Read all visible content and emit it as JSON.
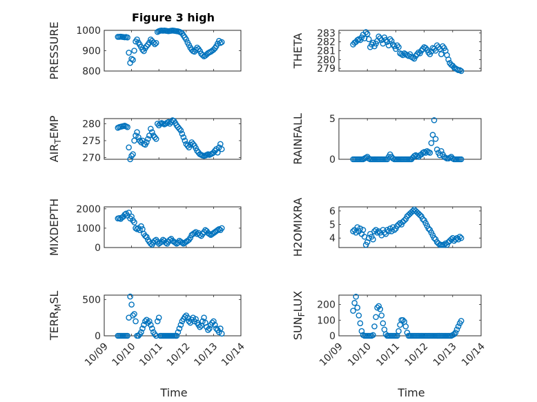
{
  "figure": {
    "title": "Figure 3 high",
    "time_label": "Time",
    "line_color": "#0072bd",
    "x_tick_labels": [
      "10/09",
      "10/10",
      "10/11",
      "10/12",
      "10/13",
      "10/14"
    ]
  },
  "chart_data": [
    {
      "type": "scatter",
      "ylabel": "PRESSURE",
      "xlabel": "",
      "xlim": [
        9,
        14
      ],
      "ylim": [
        800,
        1000
      ],
      "y_ticks": [
        800,
        900,
        1000
      ],
      "x": [
        9.5,
        9.55,
        9.6,
        9.65,
        9.7,
        9.75,
        9.8,
        9.85,
        9.9,
        9.95,
        10.0,
        10.05,
        10.1,
        10.15,
        10.2,
        10.25,
        10.3,
        10.35,
        10.4,
        10.45,
        10.5,
        10.55,
        10.6,
        10.65,
        10.7,
        10.75,
        10.8,
        10.85,
        10.9,
        10.95,
        11.0,
        11.05,
        11.1,
        11.15,
        11.2,
        11.25,
        11.3,
        11.35,
        11.4,
        11.45,
        11.5,
        11.55,
        11.6,
        11.65,
        11.7,
        11.75,
        11.8,
        11.85,
        11.9,
        11.95,
        12.0,
        12.05,
        12.1,
        12.15,
        12.2,
        12.25,
        12.3,
        12.35,
        12.4,
        12.45,
        12.5,
        12.55,
        12.6,
        12.65,
        12.7,
        12.75,
        12.8,
        12.85,
        12.9,
        12.95,
        13.0,
        13.05,
        13.1,
        13.15,
        13.2,
        13.25,
        13.3
      ],
      "y": [
        968,
        968,
        969,
        968,
        967,
        966,
        967,
        965,
        890,
        840,
        860,
        855,
        900,
        945,
        955,
        940,
        930,
        918,
        905,
        898,
        912,
        922,
        930,
        940,
        955,
        948,
        940,
        932,
        938,
        992,
        996,
        998,
        999,
        998,
        999,
        998,
        997,
        996,
        997,
        998,
        999,
        998,
        997,
        996,
        995,
        993,
        990,
        985,
        975,
        965,
        955,
        940,
        928,
        915,
        905,
        898,
        895,
        905,
        915,
        908,
        898,
        885,
        878,
        872,
        876,
        882,
        888,
        892,
        895,
        900,
        905,
        912,
        922,
        935,
        948,
        938,
        942
      ]
    },
    {
      "type": "scatter",
      "ylabel": "THETA",
      "xlabel": "",
      "xlim": [
        9,
        14
      ],
      "ylim": [
        278.7,
        283.3
      ],
      "y_ticks": [
        279,
        280,
        281,
        282,
        283
      ],
      "x": [
        9.5,
        9.55,
        9.6,
        9.65,
        9.7,
        9.75,
        9.8,
        9.85,
        9.9,
        9.95,
        10.0,
        10.05,
        10.1,
        10.15,
        10.2,
        10.25,
        10.3,
        10.35,
        10.4,
        10.45,
        10.5,
        10.55,
        10.6,
        10.65,
        10.7,
        10.75,
        10.8,
        10.85,
        10.9,
        10.95,
        11.0,
        11.05,
        11.1,
        11.15,
        11.2,
        11.25,
        11.3,
        11.35,
        11.4,
        11.45,
        11.5,
        11.55,
        11.6,
        11.65,
        11.7,
        11.75,
        11.8,
        11.85,
        11.9,
        11.95,
        12.0,
        12.05,
        12.1,
        12.15,
        12.2,
        12.25,
        12.3,
        12.35,
        12.4,
        12.45,
        12.5,
        12.55,
        12.6,
        12.65,
        12.7,
        12.75,
        12.8,
        12.85,
        12.9,
        12.95,
        13.0,
        13.05,
        13.1,
        13.15,
        13.2,
        13.25,
        13.3
      ],
      "y": [
        281.7,
        281.9,
        282.0,
        282.2,
        282.3,
        282.2,
        282.5,
        282.8,
        282.4,
        283.1,
        282.9,
        282.3,
        281.4,
        281.7,
        281.9,
        281.5,
        281.8,
        282.1,
        282.6,
        282.4,
        282.2,
        281.8,
        282.5,
        282.2,
        282.0,
        281.6,
        282.3,
        282.1,
        281.7,
        281.5,
        281.2,
        281.6,
        281.4,
        280.7,
        280.6,
        280.5,
        280.7,
        280.6,
        280.5,
        280.4,
        280.6,
        280.3,
        280.2,
        280.1,
        280.4,
        280.6,
        280.8,
        280.7,
        281.0,
        281.2,
        281.4,
        281.3,
        281.1,
        280.8,
        280.6,
        280.9,
        281.3,
        281.2,
        281.0,
        281.6,
        281.4,
        281.2,
        280.6,
        281.5,
        281.3,
        281.0,
        280.5,
        280.0,
        279.6,
        279.4,
        279.3,
        279.1,
        279.0,
        278.9,
        278.8,
        278.8,
        278.7
      ]
    },
    {
      "type": "scatter",
      "ylabel": "AIR_TEMP",
      "xlabel": "",
      "xlim": [
        9,
        14
      ],
      "ylim": [
        269.5,
        281.5
      ],
      "y_ticks": [
        270,
        275,
        280
      ],
      "x": [
        9.5,
        9.55,
        9.6,
        9.65,
        9.7,
        9.75,
        9.8,
        9.85,
        9.9,
        9.95,
        10.0,
        10.05,
        10.1,
        10.15,
        10.2,
        10.25,
        10.3,
        10.35,
        10.4,
        10.45,
        10.5,
        10.55,
        10.6,
        10.65,
        10.7,
        10.75,
        10.8,
        10.85,
        10.9,
        10.95,
        11.0,
        11.05,
        11.1,
        11.15,
        11.2,
        11.25,
        11.3,
        11.35,
        11.4,
        11.45,
        11.5,
        11.55,
        11.6,
        11.65,
        11.7,
        11.75,
        11.8,
        11.85,
        11.9,
        11.95,
        12.0,
        12.05,
        12.1,
        12.15,
        12.2,
        12.25,
        12.3,
        12.35,
        12.4,
        12.45,
        12.5,
        12.55,
        12.6,
        12.65,
        12.7,
        12.75,
        12.8,
        12.85,
        12.9,
        12.95,
        13.0,
        13.05,
        13.1,
        13.15,
        13.2,
        13.25,
        13.3
      ],
      "y": [
        278.8,
        279.0,
        279.1,
        279.2,
        279.3,
        279.4,
        279.2,
        279.0,
        273.0,
        269.5,
        270.5,
        271.0,
        275.0,
        276.5,
        277.5,
        276.0,
        275.0,
        274.5,
        275.0,
        274.0,
        273.8,
        274.5,
        275.5,
        276.5,
        278.5,
        277.5,
        276.5,
        276.0,
        275.5,
        280.0,
        279.5,
        280.0,
        280.2,
        280.0,
        279.8,
        280.0,
        280.3,
        280.5,
        280.0,
        280.5,
        281.0,
        280.8,
        280.2,
        279.5,
        279.0,
        278.5,
        278.0,
        277.0,
        276.0,
        275.0,
        274.0,
        273.5,
        273.0,
        273.8,
        274.5,
        274.0,
        273.5,
        272.8,
        272.0,
        271.5,
        271.0,
        270.8,
        270.6,
        270.5,
        270.6,
        270.8,
        271.0,
        270.8,
        271.0,
        271.2,
        271.5,
        272.0,
        272.5,
        271.5,
        273.0,
        274.0,
        272.5
      ]
    },
    {
      "type": "scatter",
      "ylabel": "RAINFALL",
      "xlabel": "",
      "xlim": [
        9,
        14
      ],
      "ylim": [
        0,
        5
      ],
      "y_ticks": [
        0,
        5
      ],
      "x": [
        9.5,
        9.55,
        9.6,
        9.65,
        9.7,
        9.75,
        9.8,
        9.85,
        9.9,
        9.95,
        10.0,
        10.05,
        10.1,
        10.15,
        10.2,
        10.25,
        10.3,
        10.35,
        10.4,
        10.45,
        10.5,
        10.55,
        10.6,
        10.65,
        10.7,
        10.75,
        10.8,
        10.85,
        10.9,
        10.95,
        11.0,
        11.05,
        11.1,
        11.15,
        11.2,
        11.25,
        11.3,
        11.35,
        11.4,
        11.45,
        11.5,
        11.55,
        11.6,
        11.65,
        11.7,
        11.75,
        11.8,
        11.85,
        11.9,
        11.95,
        12.0,
        12.05,
        12.1,
        12.15,
        12.2,
        12.25,
        12.3,
        12.35,
        12.4,
        12.45,
        12.5,
        12.55,
        12.6,
        12.65,
        12.7,
        12.75,
        12.8,
        12.85,
        12.9,
        12.95,
        13.0,
        13.05,
        13.1,
        13.15,
        13.2,
        13.25,
        13.3
      ],
      "y": [
        0,
        0,
        0,
        0,
        0,
        0,
        0,
        0,
        0.1,
        0.2,
        0.3,
        0.1,
        0,
        0,
        0,
        0,
        0,
        0,
        0,
        0,
        0,
        0,
        0,
        0,
        0,
        0.3,
        0.6,
        0.3,
        0.1,
        0,
        0,
        0,
        0,
        0,
        0,
        0,
        0,
        0,
        0,
        0,
        0,
        0,
        0.2,
        0.4,
        0.5,
        0.4,
        0.3,
        0.5,
        0.6,
        0.8,
        0.9,
        0.8,
        1.0,
        0.9,
        0.8,
        2.0,
        3.0,
        4.8,
        2.5,
        1.2,
        0.8,
        0.5,
        1.0,
        0.6,
        0.3,
        0.2,
        0.1,
        0.1,
        0.2,
        0.3,
        0.1,
        0,
        0,
        0,
        0,
        0,
        0
      ]
    },
    {
      "type": "scatter",
      "ylabel": "MIXDEPTH",
      "xlabel": "",
      "xlim": [
        9,
        14
      ],
      "ylim": [
        0,
        2100
      ],
      "y_ticks": [
        0,
        1000,
        2000
      ],
      "x": [
        9.5,
        9.55,
        9.6,
        9.65,
        9.7,
        9.75,
        9.8,
        9.85,
        9.9,
        9.95,
        10.0,
        10.05,
        10.1,
        10.15,
        10.2,
        10.25,
        10.3,
        10.35,
        10.4,
        10.45,
        10.5,
        10.55,
        10.6,
        10.65,
        10.7,
        10.75,
        10.8,
        10.85,
        10.9,
        10.95,
        11.0,
        11.05,
        11.1,
        11.15,
        11.2,
        11.25,
        11.3,
        11.35,
        11.4,
        11.45,
        11.5,
        11.55,
        11.6,
        11.65,
        11.7,
        11.75,
        11.8,
        11.85,
        11.9,
        11.95,
        12.0,
        12.05,
        12.1,
        12.15,
        12.2,
        12.25,
        12.3,
        12.35,
        12.4,
        12.45,
        12.5,
        12.55,
        12.6,
        12.65,
        12.7,
        12.75,
        12.8,
        12.85,
        12.9,
        12.95,
        13.0,
        13.05,
        13.1,
        13.15,
        13.2,
        13.25,
        13.3
      ],
      "y": [
        1500,
        1520,
        1480,
        1550,
        1600,
        1700,
        1750,
        1650,
        1800,
        1500,
        1600,
        1400,
        1300,
        1000,
        950,
        1000,
        900,
        1100,
        950,
        700,
        600,
        550,
        400,
        300,
        200,
        150,
        250,
        350,
        400,
        300,
        200,
        250,
        300,
        400,
        350,
        250,
        200,
        300,
        400,
        450,
        350,
        300,
        250,
        200,
        250,
        350,
        300,
        250,
        200,
        250,
        300,
        350,
        400,
        500,
        650,
        700,
        750,
        800,
        700,
        750,
        650,
        600,
        700,
        800,
        900,
        850,
        750,
        700,
        650,
        700,
        750,
        800,
        850,
        900,
        950,
        900,
        1000
      ]
    },
    {
      "type": "scatter",
      "ylabel": "H2OMIXRA",
      "xlabel": "",
      "xlim": [
        9,
        14
      ],
      "ylim": [
        3.3,
        6.3
      ],
      "y_ticks": [
        4,
        5,
        6
      ],
      "x": [
        9.5,
        9.55,
        9.6,
        9.65,
        9.7,
        9.75,
        9.8,
        9.85,
        9.9,
        9.95,
        10.0,
        10.05,
        10.1,
        10.15,
        10.2,
        10.25,
        10.3,
        10.35,
        10.4,
        10.45,
        10.5,
        10.55,
        10.6,
        10.65,
        10.7,
        10.75,
        10.8,
        10.85,
        10.9,
        10.95,
        11.0,
        11.05,
        11.1,
        11.15,
        11.2,
        11.25,
        11.3,
        11.35,
        11.4,
        11.45,
        11.5,
        11.55,
        11.6,
        11.65,
        11.7,
        11.75,
        11.8,
        11.85,
        11.9,
        11.95,
        12.0,
        12.05,
        12.1,
        12.15,
        12.2,
        12.25,
        12.3,
        12.35,
        12.4,
        12.45,
        12.5,
        12.55,
        12.6,
        12.65,
        12.7,
        12.75,
        12.8,
        12.85,
        12.9,
        12.95,
        13.0,
        13.05,
        13.1,
        13.15,
        13.2,
        13.25,
        13.3
      ],
      "y": [
        4.5,
        4.6,
        4.4,
        4.8,
        4.5,
        4.7,
        4.3,
        4.6,
        4.1,
        3.5,
        3.7,
        4.0,
        4.3,
        4.1,
        3.9,
        4.5,
        4.6,
        4.4,
        4.5,
        4.4,
        4.2,
        4.6,
        4.4,
        4.3,
        4.6,
        4.5,
        4.7,
        4.5,
        4.8,
        4.6,
        4.7,
        4.9,
        5.0,
        5.1,
        5.0,
        5.2,
        5.3,
        5.4,
        5.6,
        5.7,
        5.8,
        5.9,
        6.0,
        6.1,
        6.0,
        5.9,
        5.8,
        5.7,
        5.6,
        5.4,
        5.3,
        5.1,
        4.9,
        4.7,
        4.6,
        4.4,
        4.2,
        4.0,
        3.9,
        3.7,
        3.6,
        3.5,
        3.5,
        3.5,
        3.5,
        3.6,
        3.5,
        3.7,
        3.8,
        3.9,
        4.0,
        3.8,
        3.9,
        4.0,
        3.9,
        4.1,
        4.0
      ]
    },
    {
      "type": "scatter",
      "ylabel": "TERR_MSL",
      "xlabel": "Time",
      "xlim": [
        9,
        14
      ],
      "ylim": [
        0,
        560
      ],
      "y_ticks": [
        0,
        500
      ],
      "x": [
        9.5,
        9.55,
        9.6,
        9.65,
        9.7,
        9.75,
        9.8,
        9.85,
        9.9,
        9.95,
        10.0,
        10.05,
        10.1,
        10.15,
        10.2,
        10.25,
        10.3,
        10.35,
        10.4,
        10.45,
        10.5,
        10.55,
        10.6,
        10.65,
        10.7,
        10.75,
        10.8,
        10.85,
        10.9,
        10.95,
        11.0,
        11.05,
        11.1,
        11.15,
        11.2,
        11.25,
        11.3,
        11.35,
        11.4,
        11.45,
        11.5,
        11.55,
        11.6,
        11.65,
        11.7,
        11.75,
        11.8,
        11.85,
        11.9,
        11.95,
        12.0,
        12.05,
        12.1,
        12.15,
        12.2,
        12.25,
        12.3,
        12.35,
        12.4,
        12.45,
        12.5,
        12.55,
        12.6,
        12.65,
        12.7,
        12.75,
        12.8,
        12.85,
        12.9,
        12.95,
        13.0,
        13.05,
        13.1,
        13.15,
        13.2,
        13.25,
        13.3
      ],
      "y": [
        0,
        0,
        0,
        0,
        0,
        0,
        0,
        0,
        250,
        540,
        430,
        280,
        300,
        200,
        0,
        0,
        20,
        50,
        100,
        150,
        200,
        220,
        180,
        200,
        150,
        100,
        50,
        20,
        0,
        200,
        250,
        0,
        0,
        0,
        0,
        0,
        0,
        0,
        0,
        0,
        0,
        0,
        0,
        0,
        50,
        100,
        150,
        200,
        230,
        260,
        280,
        250,
        200,
        180,
        220,
        250,
        200,
        230,
        180,
        150,
        120,
        140,
        200,
        250,
        180,
        120,
        80,
        100,
        150,
        180,
        200,
        150,
        100,
        80,
        50,
        100,
        30
      ]
    },
    {
      "type": "scatter",
      "ylabel": "SUN_FLUX",
      "xlabel": "Time",
      "xlim": [
        9,
        14
      ],
      "ylim": [
        0,
        260
      ],
      "y_ticks": [
        0,
        100,
        200
      ],
      "x": [
        9.5,
        9.55,
        9.6,
        9.65,
        9.7,
        9.75,
        9.8,
        9.85,
        9.9,
        9.95,
        10.0,
        10.05,
        10.1,
        10.15,
        10.2,
        10.25,
        10.3,
        10.35,
        10.4,
        10.45,
        10.5,
        10.55,
        10.6,
        10.65,
        10.7,
        10.75,
        10.8,
        10.85,
        10.9,
        10.95,
        11.0,
        11.05,
        11.1,
        11.15,
        11.2,
        11.25,
        11.3,
        11.35,
        11.4,
        11.45,
        11.5,
        11.55,
        11.6,
        11.65,
        11.7,
        11.75,
        11.8,
        11.85,
        11.9,
        11.95,
        12.0,
        12.05,
        12.1,
        12.15,
        12.2,
        12.25,
        12.3,
        12.35,
        12.4,
        12.45,
        12.5,
        12.55,
        12.6,
        12.65,
        12.7,
        12.75,
        12.8,
        12.85,
        12.9,
        12.95,
        13.0,
        13.05,
        13.1,
        13.15,
        13.2,
        13.25,
        13.3
      ],
      "y": [
        160,
        210,
        250,
        180,
        130,
        80,
        30,
        5,
        0,
        0,
        0,
        0,
        0,
        0,
        5,
        60,
        120,
        180,
        190,
        170,
        130,
        80,
        40,
        10,
        0,
        0,
        0,
        0,
        0,
        0,
        0,
        0,
        30,
        70,
        100,
        100,
        90,
        60,
        20,
        0,
        0,
        0,
        0,
        0,
        0,
        0,
        0,
        0,
        0,
        0,
        0,
        0,
        0,
        0,
        0,
        0,
        0,
        0,
        0,
        0,
        0,
        0,
        0,
        0,
        0,
        0,
        0,
        0,
        0,
        0,
        5,
        10,
        20,
        40,
        60,
        80,
        95
      ]
    }
  ]
}
